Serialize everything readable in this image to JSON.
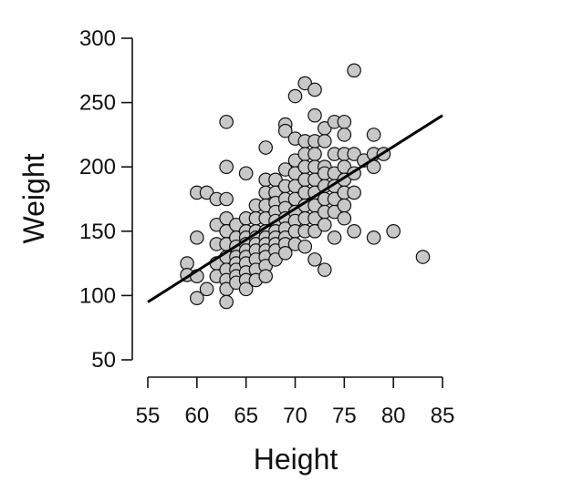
{
  "chart_data": {
    "type": "scatter",
    "title": "",
    "xlabel": "Height",
    "ylabel": "Weight",
    "xlim": [
      55,
      85
    ],
    "ylim": [
      50,
      300
    ],
    "xticks": [
      "55",
      "60",
      "65",
      "70",
      "75",
      "80",
      "85"
    ],
    "yticks": [
      "50",
      "100",
      "150",
      "200",
      "250",
      "300"
    ],
    "grid": false,
    "legend": "none",
    "point_fill": "#c8c8c8",
    "point_stroke": "#111111",
    "regression_line": {
      "x": [
        55,
        85
      ],
      "y": [
        95,
        240
      ],
      "color": "#000000"
    },
    "points": [
      {
        "x": 59,
        "y": 125
      },
      {
        "x": 59,
        "y": 116
      },
      {
        "x": 60,
        "y": 180
      },
      {
        "x": 60,
        "y": 145
      },
      {
        "x": 60,
        "y": 115
      },
      {
        "x": 60,
        "y": 98
      },
      {
        "x": 61,
        "y": 180
      },
      {
        "x": 61,
        "y": 105
      },
      {
        "x": 62,
        "y": 175
      },
      {
        "x": 62,
        "y": 155
      },
      {
        "x": 62,
        "y": 140
      },
      {
        "x": 62,
        "y": 125
      },
      {
        "x": 62,
        "y": 115
      },
      {
        "x": 63,
        "y": 235
      },
      {
        "x": 63,
        "y": 200
      },
      {
        "x": 63,
        "y": 175
      },
      {
        "x": 63,
        "y": 160
      },
      {
        "x": 63,
        "y": 150
      },
      {
        "x": 63,
        "y": 140
      },
      {
        "x": 63,
        "y": 130
      },
      {
        "x": 63,
        "y": 120
      },
      {
        "x": 63,
        "y": 112
      },
      {
        "x": 63,
        "y": 105
      },
      {
        "x": 63,
        "y": 95
      },
      {
        "x": 64,
        "y": 155
      },
      {
        "x": 64,
        "y": 145
      },
      {
        "x": 64,
        "y": 138
      },
      {
        "x": 64,
        "y": 130
      },
      {
        "x": 64,
        "y": 125
      },
      {
        "x": 64,
        "y": 120
      },
      {
        "x": 64,
        "y": 115
      },
      {
        "x": 64,
        "y": 110
      },
      {
        "x": 65,
        "y": 195
      },
      {
        "x": 65,
        "y": 160
      },
      {
        "x": 65,
        "y": 150
      },
      {
        "x": 65,
        "y": 145
      },
      {
        "x": 65,
        "y": 140
      },
      {
        "x": 65,
        "y": 135
      },
      {
        "x": 65,
        "y": 130
      },
      {
        "x": 65,
        "y": 125
      },
      {
        "x": 65,
        "y": 118
      },
      {
        "x": 65,
        "y": 112
      },
      {
        "x": 65,
        "y": 105
      },
      {
        "x": 66,
        "y": 170
      },
      {
        "x": 66,
        "y": 160
      },
      {
        "x": 66,
        "y": 150
      },
      {
        "x": 66,
        "y": 145
      },
      {
        "x": 66,
        "y": 140
      },
      {
        "x": 66,
        "y": 135
      },
      {
        "x": 66,
        "y": 128
      },
      {
        "x": 66,
        "y": 120
      },
      {
        "x": 66,
        "y": 112
      },
      {
        "x": 67,
        "y": 215
      },
      {
        "x": 67,
        "y": 190
      },
      {
        "x": 67,
        "y": 180
      },
      {
        "x": 67,
        "y": 170
      },
      {
        "x": 67,
        "y": 160
      },
      {
        "x": 67,
        "y": 150
      },
      {
        "x": 67,
        "y": 145
      },
      {
        "x": 67,
        "y": 140
      },
      {
        "x": 67,
        "y": 135
      },
      {
        "x": 67,
        "y": 130
      },
      {
        "x": 67,
        "y": 123
      },
      {
        "x": 67,
        "y": 115
      },
      {
        "x": 68,
        "y": 190
      },
      {
        "x": 68,
        "y": 180
      },
      {
        "x": 68,
        "y": 172
      },
      {
        "x": 68,
        "y": 165
      },
      {
        "x": 68,
        "y": 158
      },
      {
        "x": 68,
        "y": 150
      },
      {
        "x": 68,
        "y": 145
      },
      {
        "x": 68,
        "y": 140
      },
      {
        "x": 68,
        "y": 135
      },
      {
        "x": 68,
        "y": 128
      },
      {
        "x": 69,
        "y": 233
      },
      {
        "x": 69,
        "y": 228
      },
      {
        "x": 69,
        "y": 198
      },
      {
        "x": 69,
        "y": 185
      },
      {
        "x": 69,
        "y": 175
      },
      {
        "x": 69,
        "y": 168
      },
      {
        "x": 69,
        "y": 160
      },
      {
        "x": 69,
        "y": 152
      },
      {
        "x": 69,
        "y": 145
      },
      {
        "x": 69,
        "y": 140
      },
      {
        "x": 69,
        "y": 133
      },
      {
        "x": 70,
        "y": 255
      },
      {
        "x": 70,
        "y": 222
      },
      {
        "x": 70,
        "y": 205
      },
      {
        "x": 70,
        "y": 195
      },
      {
        "x": 70,
        "y": 185
      },
      {
        "x": 70,
        "y": 175
      },
      {
        "x": 70,
        "y": 165
      },
      {
        "x": 70,
        "y": 158
      },
      {
        "x": 70,
        "y": 150
      },
      {
        "x": 70,
        "y": 140
      },
      {
        "x": 71,
        "y": 265
      },
      {
        "x": 71,
        "y": 220
      },
      {
        "x": 71,
        "y": 210
      },
      {
        "x": 71,
        "y": 200
      },
      {
        "x": 71,
        "y": 190
      },
      {
        "x": 71,
        "y": 180
      },
      {
        "x": 71,
        "y": 170
      },
      {
        "x": 71,
        "y": 160
      },
      {
        "x": 71,
        "y": 150
      },
      {
        "x": 71,
        "y": 138
      },
      {
        "x": 72,
        "y": 260
      },
      {
        "x": 72,
        "y": 240
      },
      {
        "x": 72,
        "y": 220
      },
      {
        "x": 72,
        "y": 210
      },
      {
        "x": 72,
        "y": 200
      },
      {
        "x": 72,
        "y": 190
      },
      {
        "x": 72,
        "y": 180
      },
      {
        "x": 72,
        "y": 170
      },
      {
        "x": 72,
        "y": 160
      },
      {
        "x": 72,
        "y": 150
      },
      {
        "x": 72,
        "y": 128
      },
      {
        "x": 73,
        "y": 230
      },
      {
        "x": 73,
        "y": 220
      },
      {
        "x": 73,
        "y": 200
      },
      {
        "x": 73,
        "y": 195
      },
      {
        "x": 73,
        "y": 185
      },
      {
        "x": 73,
        "y": 175
      },
      {
        "x": 73,
        "y": 165
      },
      {
        "x": 73,
        "y": 155
      },
      {
        "x": 73,
        "y": 120
      },
      {
        "x": 74,
        "y": 235
      },
      {
        "x": 74,
        "y": 210
      },
      {
        "x": 74,
        "y": 195
      },
      {
        "x": 74,
        "y": 185
      },
      {
        "x": 74,
        "y": 175
      },
      {
        "x": 74,
        "y": 165
      },
      {
        "x": 74,
        "y": 145
      },
      {
        "x": 75,
        "y": 235
      },
      {
        "x": 75,
        "y": 225
      },
      {
        "x": 75,
        "y": 210
      },
      {
        "x": 75,
        "y": 200
      },
      {
        "x": 75,
        "y": 190
      },
      {
        "x": 75,
        "y": 180
      },
      {
        "x": 75,
        "y": 170
      },
      {
        "x": 75,
        "y": 160
      },
      {
        "x": 76,
        "y": 275
      },
      {
        "x": 76,
        "y": 210
      },
      {
        "x": 76,
        "y": 195
      },
      {
        "x": 76,
        "y": 180
      },
      {
        "x": 76,
        "y": 150
      },
      {
        "x": 77,
        "y": 205
      },
      {
        "x": 78,
        "y": 225
      },
      {
        "x": 78,
        "y": 210
      },
      {
        "x": 78,
        "y": 200
      },
      {
        "x": 78,
        "y": 145
      },
      {
        "x": 79,
        "y": 210
      },
      {
        "x": 80,
        "y": 150
      },
      {
        "x": 83,
        "y": 130
      }
    ]
  }
}
